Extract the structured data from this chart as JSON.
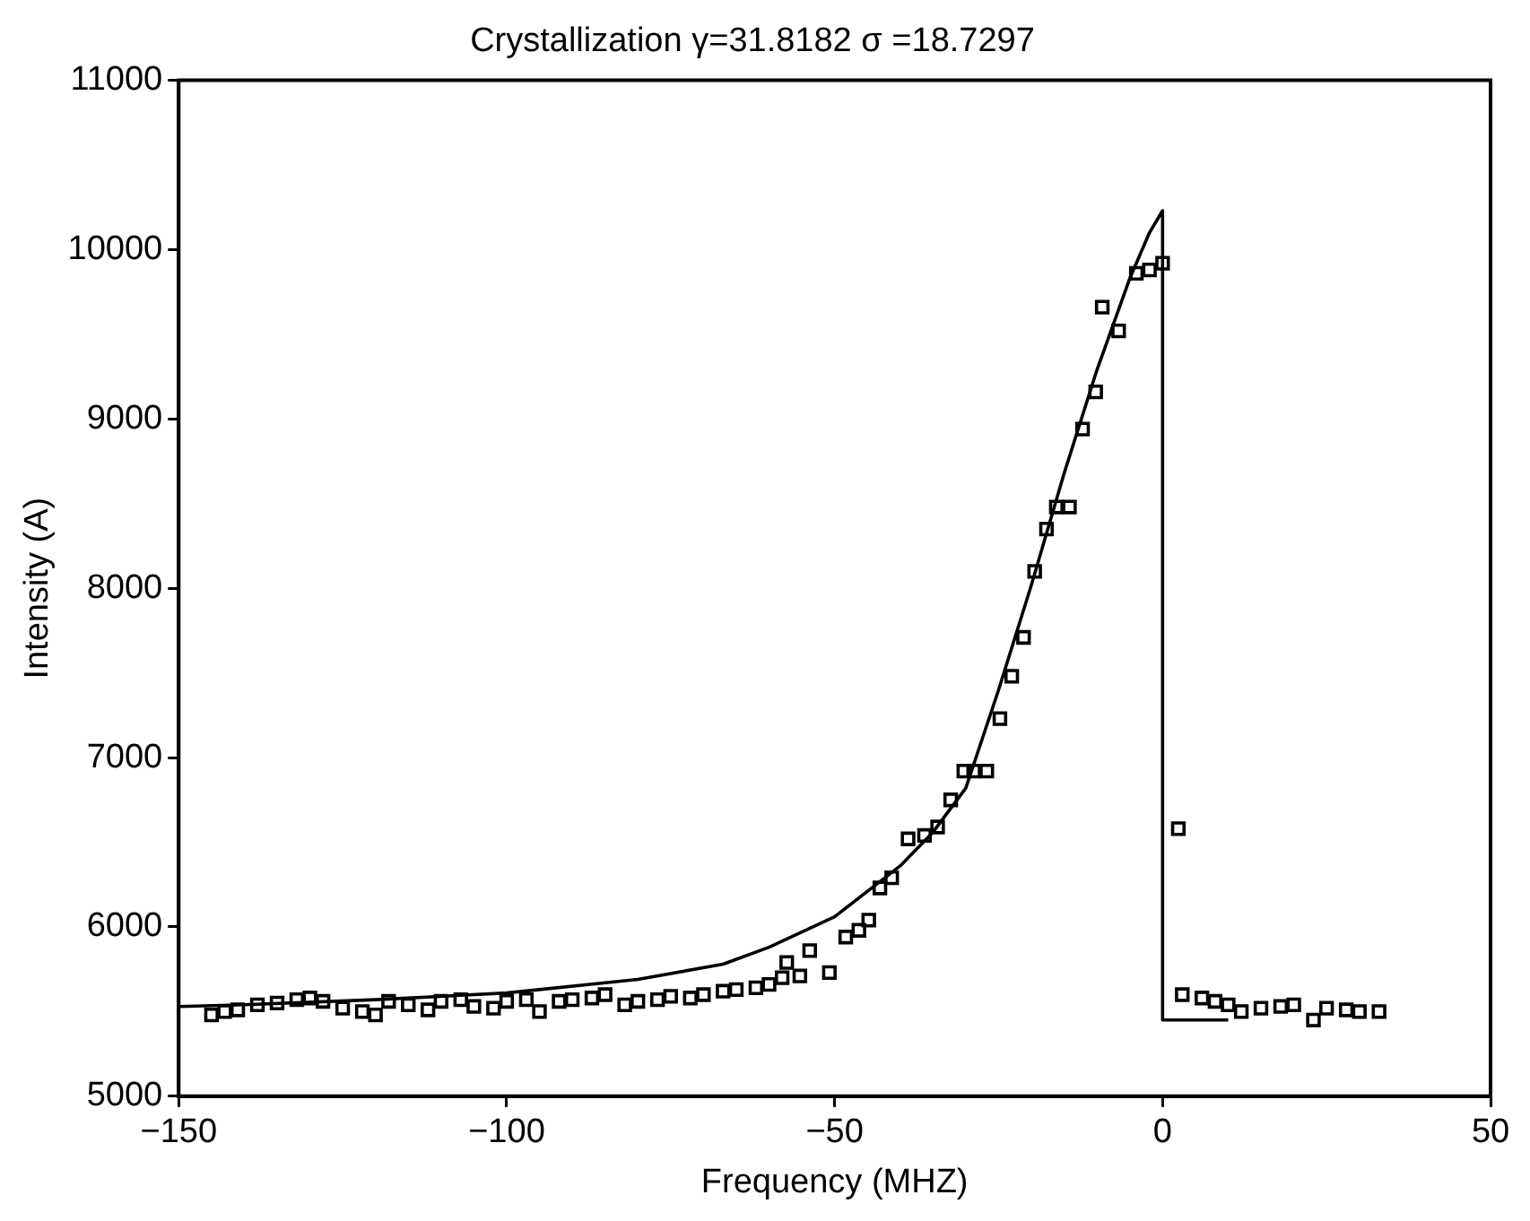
{
  "chart_data": {
    "type": "scatter",
    "title": "Crystallization γ=31.8182 σ =18.7297",
    "xlabel": "Frequency (MHZ)",
    "ylabel": "Intensity (A)",
    "xlim": [
      -150,
      50
    ],
    "xticks": [
      -150,
      -100,
      -50,
      0,
      50
    ],
    "ylim": [
      5000,
      11000
    ],
    "yticks": [
      5000,
      6000,
      7000,
      8000,
      9000,
      10000,
      11000
    ],
    "grid": false,
    "legend": false,
    "series": [
      {
        "marker": "square",
        "color": "#000000",
        "x": [
          -145,
          -143,
          -141,
          -138,
          -135,
          -132,
          -130,
          -128,
          -125,
          -122,
          -120,
          -118,
          -115,
          -112,
          -110,
          -107,
          -105,
          -102,
          -100,
          -97,
          -95,
          -92,
          -90,
          -87,
          -85,
          -82,
          -80,
          -77,
          -75,
          -72,
          -70,
          -67,
          -65,
          -62,
          -60,
          -58,
          -57.3,
          -55.3,
          -53.8,
          -50.8,
          -48.3,
          -46.3,
          -44.8,
          -43.1,
          -41.3,
          -38.8,
          -36.3,
          -34.3,
          -32.3,
          -30.3,
          -28.8,
          -26.8,
          -24.8,
          -23,
          -21.2,
          -19.5,
          -17.7,
          -16.2,
          -14.2,
          -12.2,
          -10.2,
          -9.2,
          -6.7,
          -4,
          -2,
          0,
          2.4,
          3,
          6,
          8,
          10,
          12,
          15,
          18,
          20,
          23,
          25,
          28,
          30,
          33
        ],
        "values": [
          5480,
          5500,
          5510,
          5540,
          5550,
          5570,
          5580,
          5560,
          5520,
          5500,
          5480,
          5560,
          5540,
          5510,
          5560,
          5570,
          5530,
          5520,
          5560,
          5570,
          5500,
          5560,
          5570,
          5580,
          5600,
          5540,
          5560,
          5570,
          5590,
          5580,
          5600,
          5620,
          5630,
          5640,
          5660,
          5700,
          5790,
          5710,
          5860,
          5730,
          5940,
          5980,
          6040,
          6230,
          6290,
          6520,
          6540,
          6590,
          6750,
          6920,
          6920,
          6920,
          7230,
          7480,
          7710,
          8100,
          8350,
          8480,
          8480,
          8940,
          9160,
          9660,
          9520,
          9860,
          9880,
          9920,
          6580,
          5600,
          5580,
          5560,
          5540,
          5500,
          5520,
          5530,
          5540,
          5450,
          5520,
          5510,
          5500,
          5500
        ]
      },
      {
        "type": "line",
        "marker": "none",
        "line_style": "solid",
        "color": "#000000",
        "x": [
          -150,
          -140,
          -120,
          -100,
          -80,
          -67,
          -60,
          -50,
          -40,
          -35,
          -30,
          -25,
          -20,
          -15,
          -10,
          -5,
          -2,
          0,
          0,
          10
        ],
        "values": [
          5530,
          5540,
          5570,
          5610,
          5690,
          5780,
          5880,
          6060,
          6360,
          6560,
          6820,
          7400,
          8020,
          8680,
          9290,
          9830,
          10100,
          10230,
          5450,
          5450
        ]
      }
    ]
  }
}
